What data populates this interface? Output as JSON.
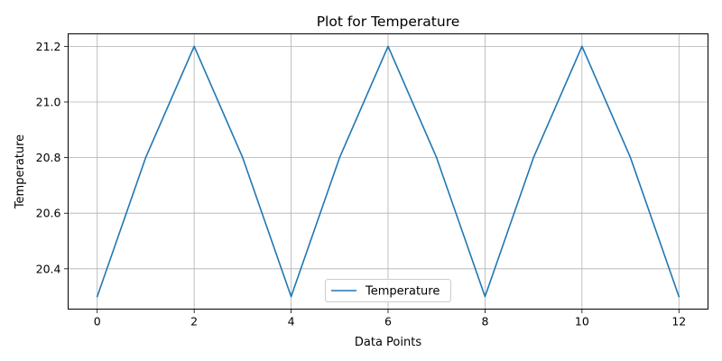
{
  "chart_data": {
    "type": "line",
    "title": "Plot for Temperature",
    "xlabel": "Data Points",
    "ylabel": "Temperature",
    "x": [
      0,
      1,
      2,
      3,
      4,
      5,
      6,
      7,
      8,
      9,
      10,
      11,
      12
    ],
    "series": [
      {
        "name": "Temperature",
        "values": [
          20.3,
          20.8,
          21.2,
          20.8,
          20.3,
          20.8,
          21.2,
          20.8,
          20.3,
          20.8,
          21.2,
          20.8,
          20.3
        ],
        "color": "#1f77b4"
      }
    ],
    "xlim": [
      -0.6,
      12.6
    ],
    "ylim": [
      20.255,
      21.245
    ],
    "xticks": [
      0,
      2,
      4,
      6,
      8,
      10,
      12
    ],
    "xtick_labels": [
      "0",
      "2",
      "4",
      "6",
      "8",
      "10",
      "12"
    ],
    "yticks": [
      20.4,
      20.6,
      20.8,
      21.0,
      21.2
    ],
    "ytick_labels": [
      "20.4",
      "20.6",
      "20.8",
      "21.0",
      "21.2"
    ],
    "grid": true,
    "legend": "lower center"
  }
}
